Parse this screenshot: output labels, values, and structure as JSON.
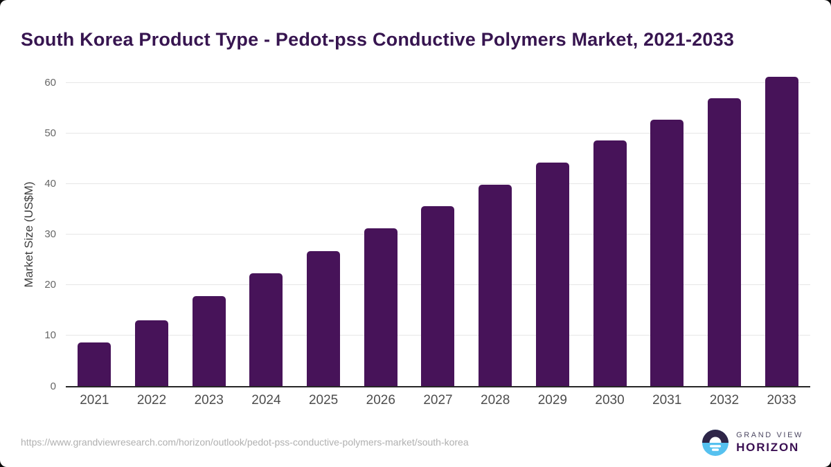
{
  "page": {
    "title": "South Korea Product Type - Pedot-pss Conductive Polymers Market, 2021-2033",
    "source_url": "https://www.grandviewresearch.com/horizon/outlook/pedot-pss-conductive-polymers-market/south-korea"
  },
  "logo": {
    "line1": "GRAND VIEW",
    "line2": "HORIZON",
    "colors": {
      "dark": "#2e2548",
      "blue": "#56c1ef",
      "text_secondary": "#4c4761",
      "text_primary": "#3b1053"
    }
  },
  "chart_data": {
    "type": "bar",
    "title": "South Korea Product Type - Pedot-pss Conductive Polymers Market, 2021-2033",
    "xlabel": "",
    "ylabel": "Market Size (US$M)",
    "categories": [
      "2021",
      "2022",
      "2023",
      "2024",
      "2025",
      "2026",
      "2027",
      "2028",
      "2029",
      "2030",
      "2031",
      "2032",
      "2033"
    ],
    "values": [
      8.6,
      13.0,
      17.8,
      22.3,
      26.7,
      31.2,
      35.6,
      39.9,
      44.3,
      48.6,
      52.7,
      57.0,
      61.2
    ],
    "yticks": [
      0,
      10,
      20,
      30,
      40,
      50,
      60
    ],
    "ylim": [
      0,
      63
    ],
    "grid": true,
    "legend": false,
    "bar_color": "#471359",
    "gridline_color": "#e6e6e6",
    "axis_line_color": "#262626"
  }
}
